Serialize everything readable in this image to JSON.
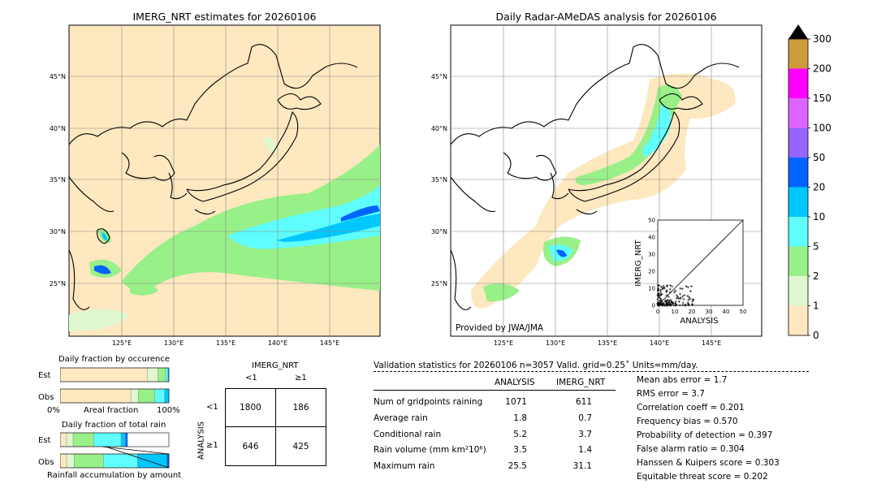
{
  "left_map": {
    "title": "IMERG_NRT estimates for 20260106",
    "lat_labels": [
      "45°N",
      "40°N",
      "35°N",
      "30°N",
      "25°N"
    ],
    "lon_labels": [
      "125°E",
      "130°E",
      "135°E",
      "140°E",
      "145°E"
    ]
  },
  "right_map": {
    "title": "Daily Radar-AMeDAS analysis for 20260106",
    "lat_labels": [
      "45°N",
      "40°N",
      "35°N",
      "30°N",
      "25°N"
    ],
    "lon_labels": [
      "125°E",
      "130°E",
      "135°E",
      "140°E",
      "145°E"
    ],
    "provider": "Provided by JWA/JMA"
  },
  "colorbar": {
    "labels": [
      "0",
      "1",
      "2",
      "5",
      "10",
      "20",
      "50",
      "100",
      "150",
      "200",
      "300"
    ],
    "colors": [
      "#fde8c0",
      "#dff8cf",
      "#98f088",
      "#5ffdfd",
      "#00c8ff",
      "#0064ff",
      "#9664ff",
      "#de64ff",
      "#ff00ff",
      "#cd9b3c"
    ],
    "extend_color": "#000000"
  },
  "scatter": {
    "xlabel": "ANALYSIS",
    "ylabel": "IMERG_NRT",
    "ticks": [
      "0",
      "10",
      "20",
      "30",
      "40",
      "50"
    ]
  },
  "occurrence": {
    "title": "Daily fraction by occurence",
    "rows": [
      "Est",
      "Obs"
    ],
    "axis_left": "0%",
    "axis_mid": "Areal fraction",
    "axis_right": "100%"
  },
  "total_rain": {
    "title": "Daily fraction of total rain",
    "rows": [
      "Est",
      "Obs"
    ],
    "footer": "Rainfall accumulation by amount"
  },
  "contingency": {
    "col_title": "IMERG_NRT",
    "col_labels": [
      "<1",
      "≥1"
    ],
    "row_title": "ANALYSIS",
    "row_labels": [
      "<1",
      "≥1"
    ],
    "cells": [
      "1800",
      "186",
      "646",
      "425"
    ]
  },
  "validation": {
    "header": "Validation statistics for 20260106  n=3057 Valid. grid=0.25˚ Units=mm/day.",
    "col_analysis": "ANALYSIS",
    "col_imerg": "IMERG_NRT",
    "rows": [
      {
        "label": "Num of gridpoints raining",
        "a": "1071",
        "b": "611"
      },
      {
        "label": "Average rain",
        "a": "1.8",
        "b": "0.7"
      },
      {
        "label": "Conditional rain",
        "a": "5.2",
        "b": "3.7"
      },
      {
        "label": "Rain volume (mm km²10⁶)",
        "a": "3.5",
        "b": "1.4"
      },
      {
        "label": "Maximum rain",
        "a": "25.5",
        "b": "31.1"
      }
    ],
    "scores": [
      "Mean abs error =    1.7",
      "RMS error =    3.7",
      "Correlation coeff =  0.201",
      "Frequency bias =  0.570",
      "Probability of detection =  0.397",
      "False alarm ratio =  0.304",
      "Hanssen & Kuipers score =  0.303",
      "Equitable threat score =  0.202"
    ]
  },
  "chart_data": [
    {
      "type": "heatmap",
      "title": "IMERG_NRT estimates for 20260106",
      "x_ticks": [
        "125°E",
        "130°E",
        "135°E",
        "140°E",
        "145°E"
      ],
      "y_ticks": [
        "45°N",
        "40°N",
        "35°N",
        "30°N",
        "25°N"
      ]
    },
    {
      "type": "heatmap",
      "title": "Daily Radar-AMeDAS analysis for 20260106",
      "x_ticks": [
        "125°E",
        "130°E",
        "135°E",
        "140°E",
        "145°E"
      ],
      "y_ticks": [
        "45°N",
        "40°N",
        "35°N",
        "30°N",
        "25°N"
      ]
    },
    {
      "type": "scatter",
      "xlabel": "ANALYSIS",
      "ylabel": "IMERG_NRT",
      "xlim": [
        0,
        50
      ],
      "ylim": [
        0,
        50
      ]
    },
    {
      "type": "bar",
      "title": "Daily fraction by occurence",
      "categories": [
        "Est",
        "Obs"
      ],
      "series": [
        {
          "values": [
            0.8,
            0.65
          ]
        },
        {
          "values": [
            0.1,
            0.07
          ]
        },
        {
          "values": [
            0.07,
            0.15
          ]
        },
        {
          "values": [
            0.02,
            0.09
          ]
        },
        {
          "values": [
            0.01,
            0.04
          ]
        }
      ]
    },
    {
      "type": "bar",
      "title": "Daily fraction of total rain",
      "categories": [
        "Est",
        "Obs"
      ],
      "series": [
        {
          "values": [
            0.06,
            0.06
          ]
        },
        {
          "values": [
            0.06,
            0.07
          ]
        },
        {
          "values": [
            0.19,
            0.27
          ]
        },
        {
          "values": [
            0.25,
            0.31
          ]
        },
        {
          "values": [
            0.04,
            0.27
          ]
        },
        {
          "values": [
            0.02,
            0.02
          ]
        }
      ]
    }
  ]
}
